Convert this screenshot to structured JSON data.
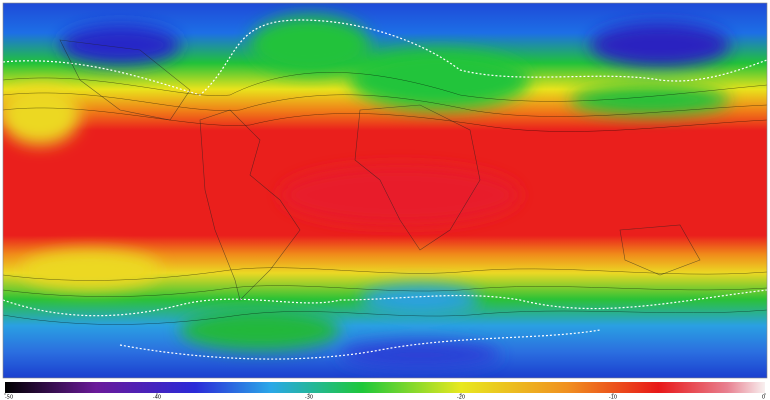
{
  "colorbar": {
    "ticks": [
      -50,
      -40,
      -30,
      -20,
      -10,
      0
    ]
  }
}
